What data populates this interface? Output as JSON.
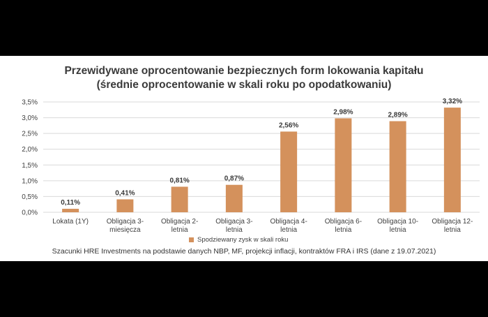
{
  "chart_data": {
    "type": "bar",
    "title": "Przewidywane oprocentowanie bezpiecznych form lokowania kapitału",
    "subtitle": "(średnie oprocentowanie w skali roku po opodatkowaniu)",
    "categories": [
      [
        "Lokata (1Y)"
      ],
      [
        "Obligacja 3-",
        "miesięcza"
      ],
      [
        "Obligacja 2-",
        "letnia"
      ],
      [
        "Obligacja 3-",
        "letnia"
      ],
      [
        "Obligacja 4-",
        "letnia"
      ],
      [
        "Obligacja 6-",
        "letnia"
      ],
      [
        "Obligacja 10-",
        "letnia"
      ],
      [
        "Obligacja 12-",
        "letnia"
      ]
    ],
    "series": [
      {
        "name": "Spodziewany zysk w skali roku",
        "values": [
          0.11,
          0.41,
          0.81,
          0.87,
          2.56,
          2.98,
          2.89,
          3.32
        ]
      }
    ],
    "data_labels": [
      "0,11%",
      "0,41%",
      "0,81%",
      "0,87%",
      "2,56%",
      "2,98%",
      "2,89%",
      "3,32%"
    ],
    "y_ticks": [
      "0,0%",
      "0,5%",
      "1,0%",
      "1,5%",
      "2,0%",
      "2,5%",
      "3,0%",
      "3,5%"
    ],
    "ylim": [
      0,
      3.5
    ],
    "grid": true,
    "legend_position": "bottom",
    "colors": {
      "bar": "#d4915c",
      "grid": "#d9d9d9",
      "text": "#404040"
    },
    "source_note": "Szacunki HRE Investments na podstawie danych NBP, MF, projekcji inflacji, kontraktów FRA i IRS (dane z 19.07.2021)"
  }
}
